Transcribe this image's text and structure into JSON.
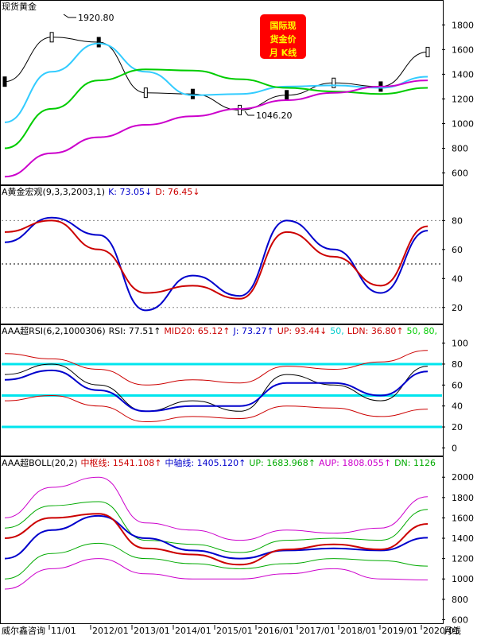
{
  "title": "现货黄金",
  "badge": {
    "lines": [
      "国际现",
      "货金价",
      "月  K线"
    ],
    "bg": "#ff0000",
    "fg": "#ffff00"
  },
  "footer": {
    "brand": "威尔鑫咨询",
    "dates": [
      "11/01",
      "2012/01",
      "2013/01",
      "2014/01",
      "2015/01",
      "2016/01",
      "2017/01",
      "2018/01",
      "2019/01",
      "2020/01"
    ],
    "period": "月线"
  },
  "panels": {
    "main": {
      "high_label": "1920.80",
      "low_label": "1046.20",
      "ticks": [
        1800,
        1600,
        1400,
        1200,
        1000,
        800,
        600
      ]
    },
    "kd": {
      "header": [
        {
          "text": "A黄金宏观(9,3,3,2003,1)",
          "color": "#000000"
        },
        {
          "text": "K: 73.05↓",
          "color": "#0000cc"
        },
        {
          "text": "D: 76.45↓",
          "color": "#cc0000"
        }
      ],
      "ticks": [
        80,
        60,
        40,
        20
      ]
    },
    "rsi": {
      "header": [
        {
          "text": "AAA超RSI(6,2,1000306)",
          "color": "#000000"
        },
        {
          "text": "RSI: 77.51↑",
          "color": "#000000"
        },
        {
          "text": "MID20: 65.12↑",
          "color": "#cc0000"
        },
        {
          "text": "J: 73.27↑",
          "color": "#0000cc"
        },
        {
          "text": "UP: 93.44↓",
          "color": "#cc0000"
        },
        {
          "text": "50,",
          "color": "#00cccc"
        },
        {
          "text": "LDN: 36.80↑",
          "color": "#cc0000"
        },
        {
          "text": "50, 80,",
          "color": "#00cc00"
        }
      ],
      "ticks": [
        100,
        80,
        60,
        40,
        20,
        0
      ]
    },
    "boll": {
      "header": [
        {
          "text": "AAA超BOLL(20,2)",
          "color": "#000000"
        },
        {
          "text": "中枢线: 1541.108↑",
          "color": "#cc0000"
        },
        {
          "text": "中轴线: 1405.120↑",
          "color": "#0000cc"
        },
        {
          "text": "UP: 1683.968↑",
          "color": "#00aa00"
        },
        {
          "text": "AUP: 1808.055↑",
          "color": "#cc00cc"
        },
        {
          "text": "DN: 1126",
          "color": "#00aa00"
        }
      ],
      "ticks": [
        2000,
        1800,
        1600,
        1400,
        1200,
        1000,
        800,
        600
      ]
    }
  },
  "chart_data": {
    "type": "line",
    "x": [
      "2011/01",
      "2012/01",
      "2013/01",
      "2014/01",
      "2015/01",
      "2016/01",
      "2017/01",
      "2018/01",
      "2019/01",
      "2020/01"
    ],
    "series": [
      {
        "values": [
          1340,
          1700,
          1660,
          1250,
          1240,
          1110,
          1230,
          1330,
          1300,
          1580
        ]
      },
      {
        "values": [
          1010,
          1420,
          1650,
          1420,
          1230,
          1240,
          1300,
          1310,
          1290,
          1380
        ]
      },
      {
        "values": [
          800,
          1120,
          1350,
          1440,
          1430,
          1360,
          1290,
          1260,
          1240,
          1290
        ]
      },
      {
        "values": [
          570,
          760,
          890,
          990,
          1060,
          1120,
          1190,
          1250,
          1300,
          1350
        ]
      }
    ],
    "ylim": [
      520,
      1950
    ]
  },
  "kd_data": {
    "K": [
      65,
      82,
      70,
      18,
      42,
      28,
      80,
      60,
      30,
      73
    ],
    "D": [
      72,
      80,
      60,
      30,
      35,
      26,
      72,
      55,
      35,
      76
    ],
    "ylim": [
      10,
      95
    ]
  },
  "rsi_data": {
    "RSI": [
      70,
      80,
      60,
      35,
      45,
      35,
      70,
      60,
      45,
      78
    ],
    "J": [
      65,
      74,
      55,
      35,
      40,
      40,
      62,
      62,
      50,
      73
    ],
    "UP": [
      90,
      85,
      75,
      60,
      65,
      62,
      78,
      75,
      82,
      93
    ],
    "LDN": [
      45,
      50,
      40,
      25,
      30,
      28,
      40,
      38,
      30,
      37
    ],
    "levels": [
      80,
      50,
      20
    ],
    "ylim": [
      -5,
      105
    ]
  },
  "boll_data": {
    "mid": [
      1400,
      1600,
      1640,
      1300,
      1240,
      1140,
      1290,
      1340,
      1290,
      1541
    ],
    "axis": [
      1200,
      1480,
      1620,
      1400,
      1280,
      1200,
      1280,
      1300,
      1280,
      1405
    ],
    "UP": [
      1500,
      1720,
      1760,
      1380,
      1340,
      1260,
      1380,
      1400,
      1380,
      1684
    ],
    "AUP": [
      1600,
      1900,
      2000,
      1550,
      1480,
      1380,
      1480,
      1450,
      1500,
      1808
    ],
    "DN": [
      1000,
      1250,
      1350,
      1200,
      1150,
      1100,
      1150,
      1200,
      1180,
      1126
    ],
    "ADN": [
      900,
      1100,
      1200,
      1050,
      1000,
      1000,
      1050,
      1100,
      1000,
      990
    ],
    "ylim": [
      580,
      2080
    ]
  }
}
